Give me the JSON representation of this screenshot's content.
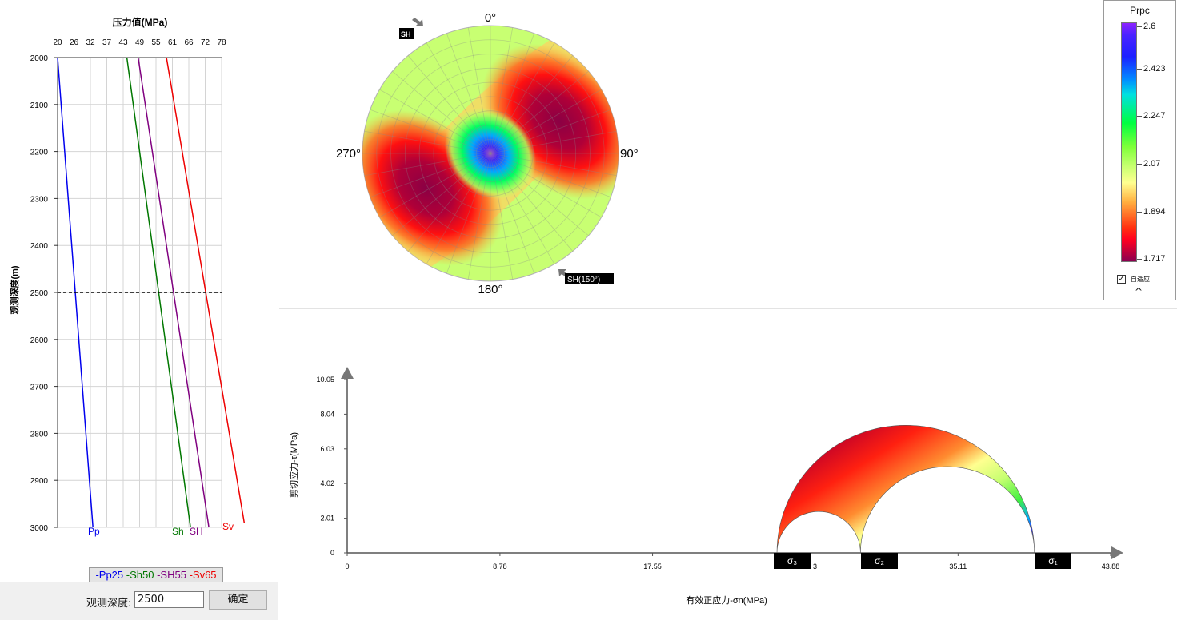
{
  "colors": {
    "pp": "#0000ee",
    "sh50": "#007700",
    "sh55": "#800080",
    "sv65": "#ee0000",
    "tag_bg": "#000000",
    "tag_fg": "#ffffff"
  },
  "pressure_chart": {
    "title": "压力值(MPa)",
    "ylabel": "观测深度(m)",
    "x_ticks": [
      "20",
      "26",
      "32",
      "37",
      "43",
      "49",
      "55",
      "61",
      "66",
      "72",
      "78"
    ],
    "y_ticks": [
      "2000",
      "2100",
      "2200",
      "2300",
      "2400",
      "2500",
      "2600",
      "2700",
      "2800",
      "2900",
      "3000"
    ],
    "series_labels": {
      "pp": "Pp",
      "sh": "Sh",
      "SH": "SH",
      "sv": "Sv"
    },
    "legend": {
      "pp": "-Pp25",
      "sh": "-Sh50",
      "SH": "-SH55",
      "sv": "-Sv65"
    }
  },
  "chart_data": [
    {
      "type": "line",
      "title": "压力值(MPa)",
      "xlabel": "压力值(MPa)",
      "ylabel": "观测深度(m)",
      "xlim": [
        20,
        78
      ],
      "ylim": [
        3000,
        2000
      ],
      "marker_line_depth": 2500,
      "series": [
        {
          "name": "Pp25",
          "x": [
            20,
            32.5
          ],
          "y": [
            2000,
            3000
          ]
        },
        {
          "name": "Sh50",
          "x": [
            44.5,
            67.0
          ],
          "y": [
            2000,
            3000
          ]
        },
        {
          "name": "SH55",
          "x": [
            48.5,
            73.5
          ],
          "y": [
            2000,
            3000
          ]
        },
        {
          "name": "Sv65",
          "x": [
            58.5,
            86.0
          ],
          "y": [
            2000,
            2990
          ]
        }
      ]
    },
    {
      "type": "heatmap",
      "title": "",
      "angles": [
        "0°",
        "90°",
        "180°",
        "270°"
      ],
      "colorbar_title": "Prpc",
      "colorbar_range": [
        1.717,
        2.6
      ]
    },
    {
      "type": "line",
      "title": "",
      "xlabel": "有效正应力-σn(MPa)",
      "ylabel": "剪切应力-τ(MPa)",
      "xlim": [
        0,
        43.88
      ],
      "ylim": [
        0,
        10.05
      ],
      "circles": [
        {
          "name": "σ1-σ3",
          "from": 24.7,
          "to": 39.5
        },
        {
          "name": "σ3-σ2",
          "from": 24.7,
          "to": 29.5
        },
        {
          "name": "σ2-σ1",
          "from": 29.5,
          "to": 39.5
        }
      ]
    }
  ],
  "stereonet": {
    "angle_0": "0°",
    "angle_90": "90°",
    "angle_180": "180°",
    "angle_270": "270°",
    "sh_max_tag": "SH",
    "sh_min_tag": "SH(150°)"
  },
  "colorbar": {
    "title": "Prpc",
    "labels": [
      "2.6",
      "2.423",
      "2.247",
      "2.07",
      "1.894",
      "1.717"
    ],
    "adaptive_label": "自适应",
    "adaptive_checked": "✓",
    "collapse_icon": "^"
  },
  "mohr": {
    "xlabel": "有效正应力-σn(MPa)",
    "ylabel": "剪切应力-τ(MPa)",
    "x_ticks": [
      "0",
      "8.78",
      "17.55",
      "35.11",
      "43.88"
    ],
    "x_partial_tick": "3",
    "y_ticks": [
      "0",
      "2.01",
      "4.02",
      "6.03",
      "8.04",
      "10.05"
    ],
    "sigma3": "σ₃",
    "sigma2": "σ₂",
    "sigma1": "σ₁"
  },
  "controls": {
    "depth_label": "观测深度:",
    "depth_value": "2500",
    "confirm_label": "确定"
  }
}
